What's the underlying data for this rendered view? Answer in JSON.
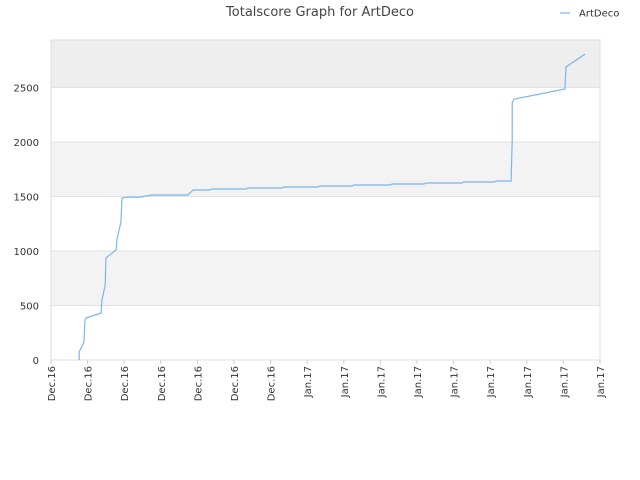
{
  "chart_data": {
    "type": "line",
    "title": "Totalscore Graph for ArtDeco",
    "x": [
      0.77,
      0.77,
      0.9,
      0.93,
      0.96,
      1.37,
      1.39,
      1.48,
      1.5,
      1.78,
      1.8,
      1.91,
      1.94,
      2.07,
      2.43,
      2.76,
      3.74,
      3.88,
      4.34,
      4.4,
      5.33,
      5.38,
      6.31,
      6.37,
      7.3,
      7.35,
      8.22,
      8.28,
      9.26,
      9.32,
      10.19,
      10.25,
      11.23,
      11.28,
      12.1,
      12.16,
      12.57,
      12.6,
      12.6,
      12.65,
      14.04,
      14.07,
      14.59
    ],
    "series": [
      {
        "name": "ArtDeco",
        "color": "#7cb5ec",
        "values": [
          0,
          73,
          165,
          367,
          385,
          431,
          550,
          688,
          936,
          1009,
          1101,
          1266,
          1486,
          1495,
          1495,
          1514,
          1514,
          1560,
          1560,
          1569,
          1569,
          1578,
          1578,
          1587,
          1587,
          1596,
          1596,
          1606,
          1606,
          1615,
          1615,
          1624,
          1624,
          1633,
          1633,
          1642,
          1642,
          2018,
          2358,
          2394,
          2486,
          2688,
          2807
        ]
      }
    ],
    "xlim": [
      0,
      15
    ],
    "xticks": [
      {
        "value": 0,
        "label": "Dec.16"
      },
      {
        "value": 1,
        "label": "Dec.16"
      },
      {
        "value": 2,
        "label": "Dec.16"
      },
      {
        "value": 3,
        "label": "Dec.16"
      },
      {
        "value": 4,
        "label": "Dec.16"
      },
      {
        "value": 5,
        "label": "Dec.16"
      },
      {
        "value": 6,
        "label": "Dec.16"
      },
      {
        "value": 7,
        "label": "Jan.17"
      },
      {
        "value": 8,
        "label": "Jan.17"
      },
      {
        "value": 9,
        "label": "Jan.17"
      },
      {
        "value": 10,
        "label": "Jan.17"
      },
      {
        "value": 11,
        "label": "Jan.17"
      },
      {
        "value": 12,
        "label": "Jan.17"
      },
      {
        "value": 13,
        "label": "Jan.17"
      },
      {
        "value": 14,
        "label": "Jan.17"
      },
      {
        "value": 15,
        "label": "Jan.17"
      }
    ],
    "ylim": [
      0,
      2936
    ],
    "yticks": [
      0,
      500,
      1000,
      1500,
      2000,
      2500
    ],
    "grid": true,
    "legend": "top-right"
  }
}
